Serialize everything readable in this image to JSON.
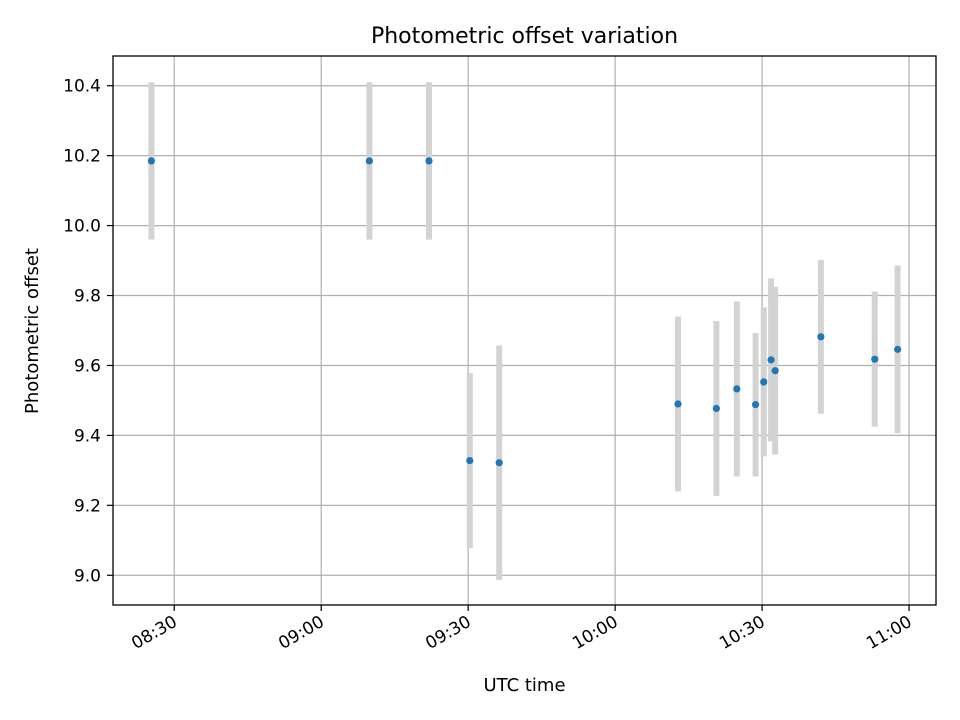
{
  "chart_data": {
    "type": "scatter",
    "title": "Photometric offset variation",
    "xlabel": "UTC time",
    "ylabel": "Photometric offset",
    "x_unit": "time of day (HH:MM)",
    "xlim": [
      "08:17:30",
      "11:05:30"
    ],
    "ylim": [
      8.915,
      10.485
    ],
    "xticks": [
      "08:30",
      "09:00",
      "09:30",
      "10:00",
      "10:30",
      "11:00"
    ],
    "yticks": [
      9.0,
      9.2,
      9.4,
      9.6,
      9.8,
      10.0,
      10.2,
      10.4
    ],
    "ytick_labels": [
      "9.0",
      "9.2",
      "9.4",
      "9.6",
      "9.8",
      "10.0",
      "10.2",
      "10.4"
    ],
    "grid": true,
    "colors": {
      "point": "#1f77b4",
      "errorbar": "#d3d3d3",
      "grid": "#b0b0b0"
    },
    "points": [
      {
        "x": "08:25:20",
        "y": 10.185,
        "err": 0.225
      },
      {
        "x": "09:09:50",
        "y": 10.185,
        "err": 0.225
      },
      {
        "x": "09:22:00",
        "y": 10.185,
        "err": 0.225
      },
      {
        "x": "09:30:20",
        "y": 9.328,
        "err": 0.25
      },
      {
        "x": "09:36:20",
        "y": 9.322,
        "err": 0.335
      },
      {
        "x": "10:12:50",
        "y": 9.49,
        "err": 0.25
      },
      {
        "x": "10:20:40",
        "y": 9.477,
        "err": 0.25
      },
      {
        "x": "10:24:50",
        "y": 9.533,
        "err": 0.25
      },
      {
        "x": "10:28:40",
        "y": 9.488,
        "err": 0.205
      },
      {
        "x": "10:30:20",
        "y": 9.553,
        "err": 0.213
      },
      {
        "x": "10:31:50",
        "y": 9.616,
        "err": 0.233
      },
      {
        "x": "10:32:40",
        "y": 9.585,
        "err": 0.24
      },
      {
        "x": "10:42:00",
        "y": 9.682,
        "err": 0.22
      },
      {
        "x": "10:53:00",
        "y": 9.618,
        "err": 0.193
      },
      {
        "x": "10:57:40",
        "y": 9.646,
        "err": 0.24
      }
    ]
  }
}
